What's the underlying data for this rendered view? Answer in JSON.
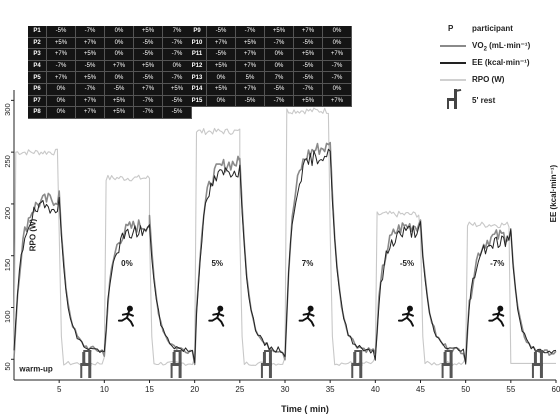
{
  "table": {
    "left": [
      {
        "p": "P1",
        "v": [
          "-5%",
          "-7%",
          "0%",
          "+5%",
          "7%"
        ]
      },
      {
        "p": "P2",
        "v": [
          "+5%",
          "+7%",
          "0%",
          "-5%",
          "-7%"
        ]
      },
      {
        "p": "P3",
        "v": [
          "+7%",
          "+5%",
          "0%",
          "-5%",
          "-7%"
        ]
      },
      {
        "p": "P4",
        "v": [
          "-7%",
          "-5%",
          "+7%",
          "+5%",
          "0%"
        ]
      },
      {
        "p": "P5",
        "v": [
          "+7%",
          "+5%",
          "0%",
          "-5%",
          "-7%"
        ]
      },
      {
        "p": "P6",
        "v": [
          "0%",
          "-7%",
          "-5%",
          "+7%",
          "+5%"
        ]
      },
      {
        "p": "P7",
        "v": [
          "0%",
          "+7%",
          "+5%",
          "-7%",
          "-5%"
        ]
      },
      {
        "p": "P8",
        "v": [
          "0%",
          "+7%",
          "+5%",
          "-7%",
          "-5%"
        ]
      }
    ],
    "right": [
      {
        "p": "P9",
        "v": [
          "-5%",
          "-7%",
          "+5%",
          "+7%",
          "0%"
        ]
      },
      {
        "p": "P10",
        "v": [
          "+7%",
          "+5%",
          "-7%",
          "-5%",
          "0%"
        ]
      },
      {
        "p": "P11",
        "v": [
          "-5%",
          "+7%",
          "0%",
          "+5%",
          "+7%"
        ]
      },
      {
        "p": "P12",
        "v": [
          "+5%",
          "+7%",
          "0%",
          "-5%",
          "-7%"
        ]
      },
      {
        "p": "P13",
        "v": [
          "0%",
          "5%",
          "7%",
          "-5%",
          "-7%"
        ]
      },
      {
        "p": "P14",
        "v": [
          "+5%",
          "+7%",
          "-5%",
          "-7%",
          "0%"
        ]
      },
      {
        "p": "P15",
        "v": [
          "0%",
          "-5%",
          "-7%",
          "+5%",
          "+7%"
        ]
      }
    ]
  },
  "legend": {
    "p_symbol": "P",
    "participant": "participant",
    "vo2_a": "VO",
    "vo2_sub": "2",
    "vo2_b": " (mL·min⁻¹)",
    "ee": "EE (kcal·min⁻¹)",
    "rpo": "RPO (W)",
    "rest": "5' rest"
  },
  "colors": {
    "vo2": "#8a8a8a",
    "ee": "#222222",
    "rpo": "#c8c8c8",
    "table_bg": "#141414"
  },
  "icons": [
    "runner-icon",
    "chair-icon"
  ],
  "chart_data": {
    "type": "line",
    "xlabel": "Time ( min)",
    "ylabel_left": "RPO (W)",
    "ylabel_right": "EE (kcal·min⁻¹)",
    "xlim": [
      0,
      60
    ],
    "ylim": [
      30,
      310
    ],
    "xticks": [
      5,
      10,
      15,
      20,
      25,
      30,
      35,
      40,
      45,
      50,
      55,
      60
    ],
    "yticks": [
      50,
      100,
      150,
      200,
      250,
      300
    ],
    "grid": false,
    "annotations": {
      "warmup": "warm-up",
      "stages": [
        {
          "label": "0%",
          "x": 12.5
        },
        {
          "label": "5%",
          "x": 22.5
        },
        {
          "label": "7%",
          "x": 32.5
        },
        {
          "label": "-5%",
          "x": 43.5
        },
        {
          "label": "-7%",
          "x": 53.5
        }
      ]
    },
    "stages": [
      {
        "name": "warm-up",
        "start": 0,
        "end": 5,
        "rpo": 250,
        "vo2": 205
      },
      {
        "name": "0%",
        "start": 10,
        "end": 15,
        "rpo": 225,
        "vo2": 180
      },
      {
        "name": "5%",
        "start": 20,
        "end": 25,
        "rpo": 270,
        "vo2": 240
      },
      {
        "name": "7%",
        "start": 30,
        "end": 35,
        "rpo": 290,
        "vo2": 255
      },
      {
        "name": "-5%",
        "start": 40,
        "end": 45,
        "rpo": 190,
        "vo2": 180
      },
      {
        "name": "-7%",
        "start": 50,
        "end": 55,
        "rpo": 180,
        "vo2": 170
      }
    ],
    "rest_level": 52,
    "series": [
      {
        "name": "VO2 (mL·min⁻¹)",
        "style": "mid-grey"
      },
      {
        "name": "EE (kcal·min⁻¹)",
        "style": "dark"
      },
      {
        "name": "RPO (W)",
        "style": "light-grey"
      }
    ]
  }
}
